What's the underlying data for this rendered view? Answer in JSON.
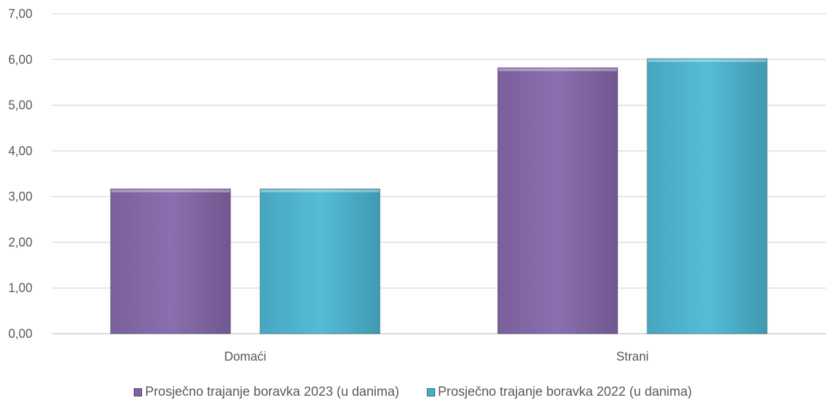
{
  "chart_data": {
    "type": "bar",
    "title": "",
    "xlabel": "",
    "ylabel": "",
    "categories": [
      "Domaći",
      "Strani"
    ],
    "series": [
      {
        "name": "Prosječno trajanje boravka 2023 (u danima)",
        "values": [
          3.17,
          5.82
        ],
        "color": "#8064A2"
      },
      {
        "name": "Prosječno trajanje boravka 2022 (u danima)",
        "values": [
          3.17,
          6.02
        ],
        "color": "#4BACC6"
      }
    ],
    "ylim": [
      0,
      7
    ],
    "yticks": [
      "0,00",
      "1,00",
      "2,00",
      "3,00",
      "4,00",
      "5,00",
      "6,00",
      "7,00"
    ],
    "grid": true,
    "legend_position": "bottom"
  }
}
